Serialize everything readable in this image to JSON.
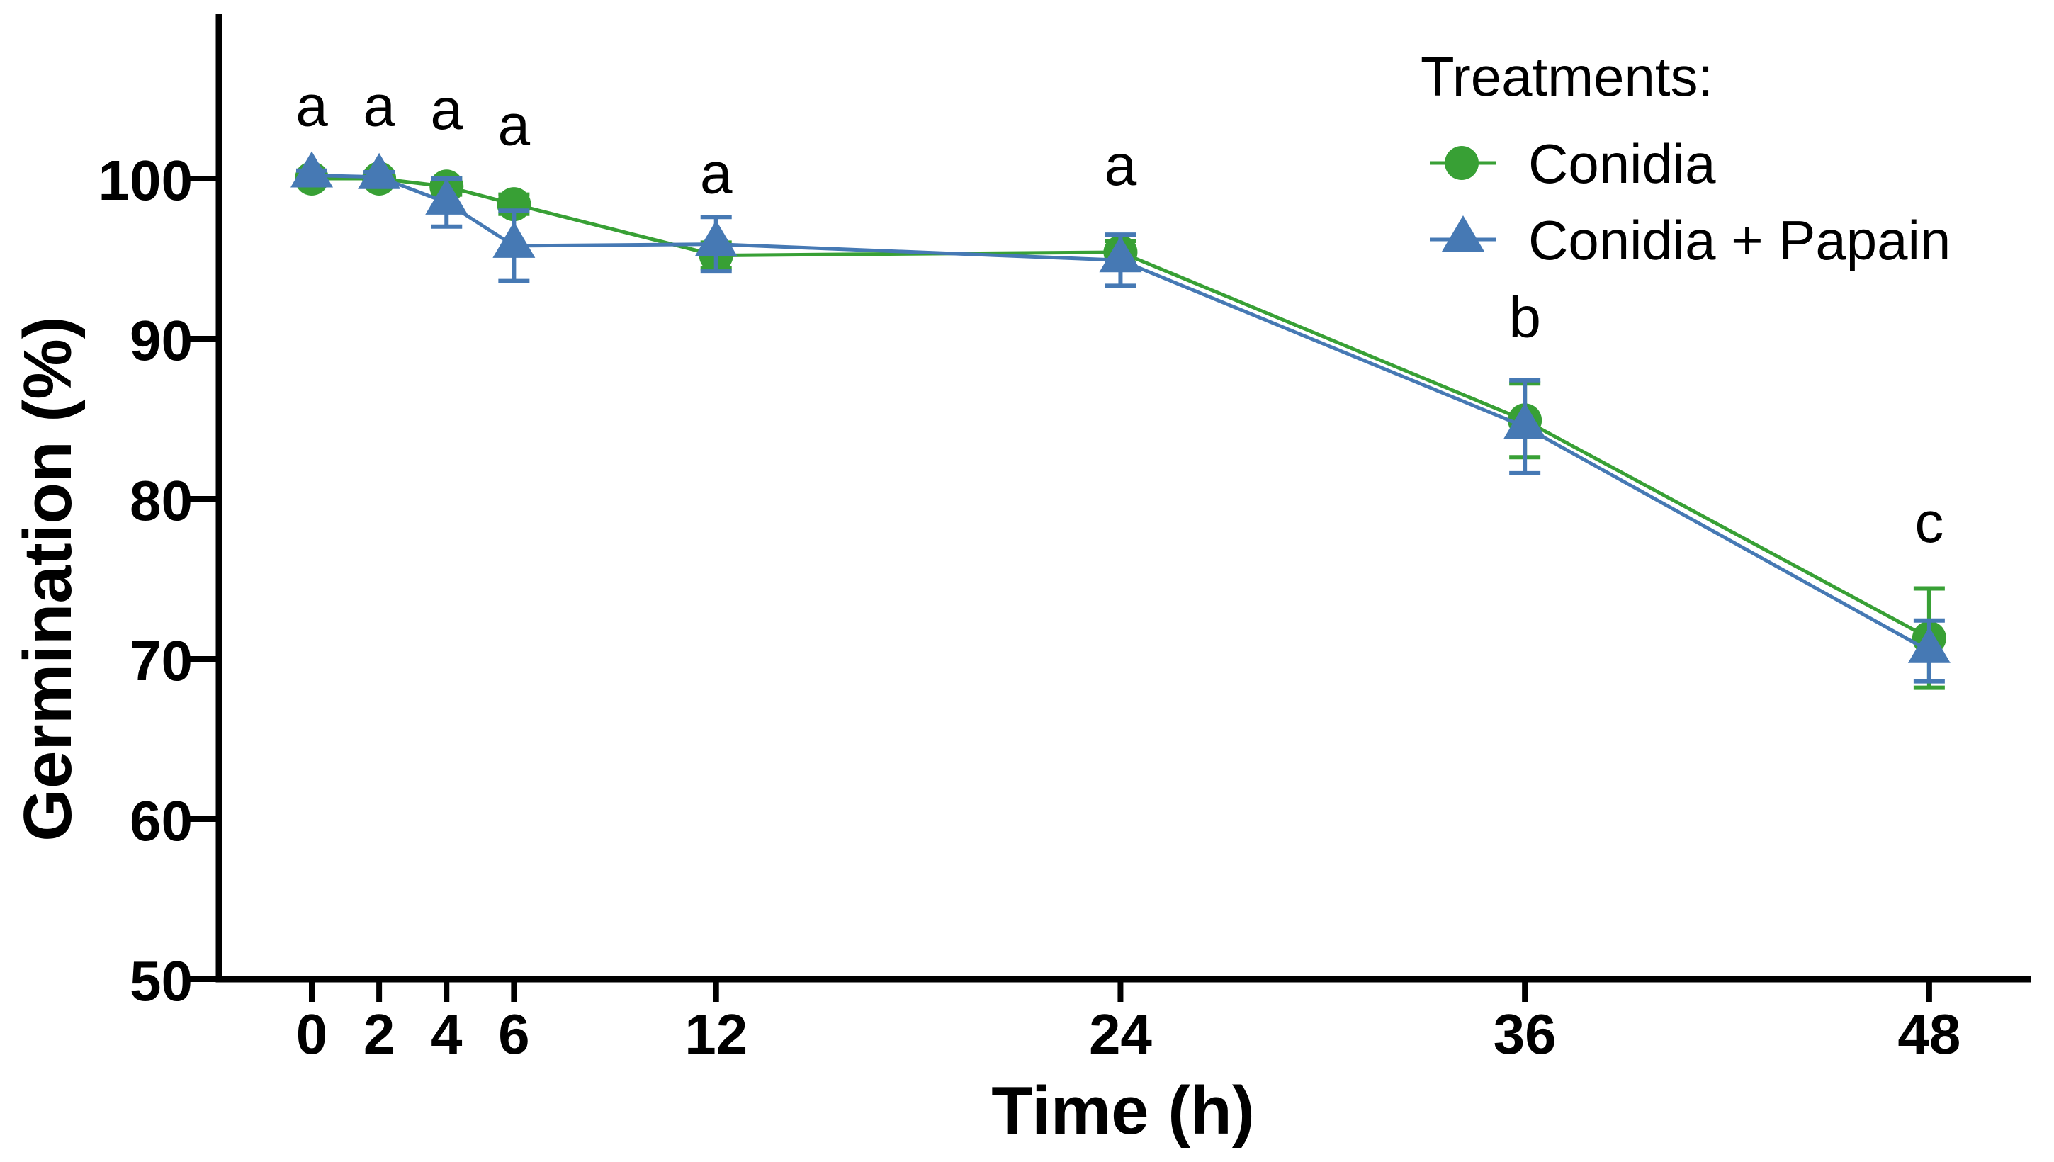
{
  "chart_data": {
    "type": "line",
    "title": "",
    "xlabel": "Time (h)",
    "ylabel": "Germination (%)",
    "x": [
      0,
      2,
      4,
      6,
      12,
      24,
      36,
      48
    ],
    "x_ticks": [
      "0",
      "2",
      "4",
      "6",
      "12",
      "24",
      "36",
      "48"
    ],
    "y_ticks": [
      "50",
      "60",
      "70",
      "80",
      "90",
      "100"
    ],
    "xlim": [
      -2.8,
      51
    ],
    "ylim": [
      50,
      110
    ],
    "grid": false,
    "legend_position": "top-right",
    "series": [
      {
        "name": "Conidia",
        "marker": "circle",
        "color": "#38a035",
        "values": [
          100.0,
          100.0,
          99.5,
          98.4,
          95.2,
          95.4,
          84.9,
          71.3
        ],
        "errors": [
          0.3,
          0.3,
          0.5,
          0.6,
          0.8,
          0.7,
          2.3,
          3.1
        ]
      },
      {
        "name": "Conidia + Papain",
        "marker": "triangle",
        "color": "#4679b4",
        "values": [
          100.2,
          100.1,
          98.5,
          95.8,
          95.9,
          94.9,
          84.5,
          70.5
        ],
        "errors": [
          0.3,
          0.3,
          1.5,
          2.2,
          1.7,
          1.6,
          2.9,
          1.9
        ]
      }
    ],
    "significance_letters": [
      {
        "t": 0,
        "label": "a",
        "label_y": 103.3
      },
      {
        "t": 2,
        "label": "a",
        "label_y": 103.3
      },
      {
        "t": 4,
        "label": "a",
        "label_y": 103.1
      },
      {
        "t": 6,
        "label": "a",
        "label_y": 102.1
      },
      {
        "t": 12,
        "label": "a",
        "label_y": 99.1
      },
      {
        "t": 24,
        "label": "a",
        "label_y": 99.6
      },
      {
        "t": 36,
        "label": "b",
        "label_y": 90.1
      },
      {
        "t": 48,
        "label": "c",
        "label_y": 77.3
      }
    ]
  },
  "legend": {
    "title": "Treatments:"
  },
  "colors": {
    "axis": "#000000",
    "text": "#000000",
    "background": "#ffffff"
  }
}
